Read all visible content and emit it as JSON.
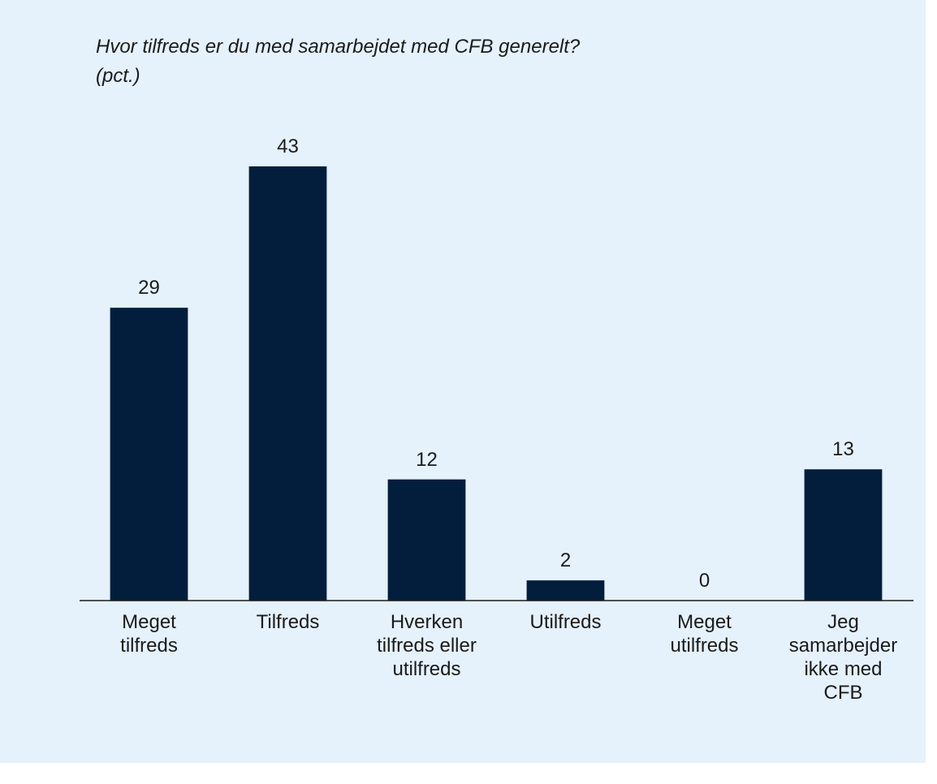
{
  "chart_data": {
    "type": "bar",
    "title": "Hvor tilfreds er du med samarbejdet med CFB generelt?\n(pct.)",
    "categories": [
      "Meget\ntilfreds",
      "Tilfreds",
      "Hverken\ntilfreds eller\nutilfreds",
      "Utilfreds",
      "Meget\nutilfreds",
      "Jeg\nsamarbejder\nikke med\nCFB"
    ],
    "values": [
      29,
      43,
      12,
      2,
      0,
      13
    ],
    "color": "#021e3c"
  }
}
